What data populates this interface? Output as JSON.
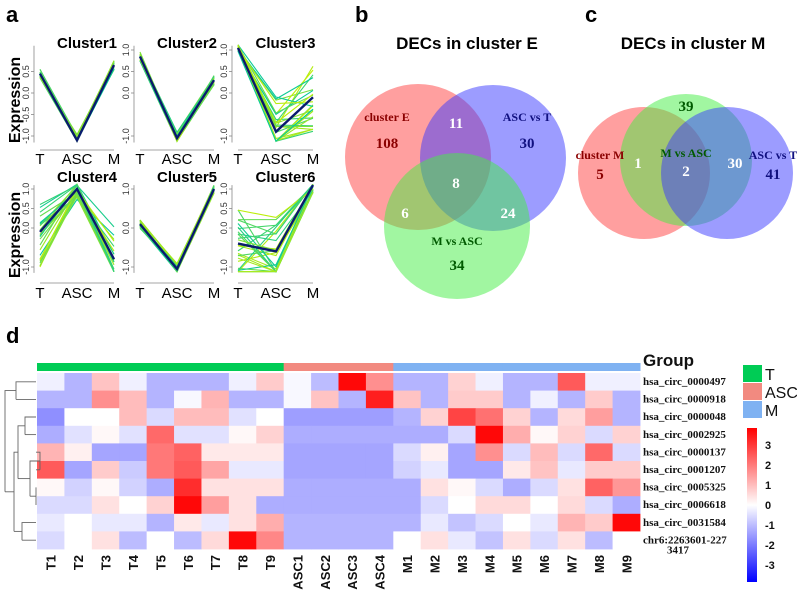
{
  "panel_labels": {
    "a": "a",
    "b": "b",
    "c": "c",
    "d": "d"
  },
  "chart_data": [
    {
      "type": "line",
      "panel": "a",
      "ylabel": "Expression",
      "categories": [
        "T",
        "ASC",
        "M"
      ],
      "ylim": [
        -1.1,
        1.1
      ],
      "clusters": [
        {
          "title": "Cluster1",
          "centroid": [
            0.45,
            -1.1,
            0.65
          ],
          "ytick_labels": [
            "-1.0",
            "-0.5",
            "0.0",
            "0.5"
          ],
          "yticks": [
            -1,
            -0.5,
            0,
            0.5
          ]
        },
        {
          "title": "Cluster2",
          "centroid": [
            0.85,
            -1.05,
            0.3
          ],
          "ytick_labels": [
            "-1.0",
            "0.0",
            "0.5",
            "1.0"
          ],
          "yticks": [
            -1,
            0,
            0.5,
            1
          ]
        },
        {
          "title": "Cluster3",
          "centroid": [
            1.05,
            -0.9,
            -0.1
          ],
          "ytick_labels": [
            "-1.0",
            "0.0",
            "0.5",
            "1.0"
          ],
          "yticks": [
            -1,
            0,
            0.5,
            1
          ]
        },
        {
          "title": "Cluster4",
          "centroid": [
            -0.1,
            1.0,
            -0.8
          ],
          "ytick_labels": [
            "-1.0",
            "0.0",
            "0.5",
            "1.0"
          ],
          "yticks": [
            -1,
            0,
            0.5,
            1
          ]
        },
        {
          "title": "Cluster5",
          "centroid": [
            0.1,
            -1.05,
            1.0
          ],
          "ytick_labels": [
            "-1.0",
            "0.0",
            "1.0"
          ],
          "yticks": [
            -1,
            0,
            1
          ]
        },
        {
          "title": "Cluster6",
          "centroid": [
            -0.4,
            -0.6,
            1.1
          ],
          "ytick_labels": [
            "-1.0",
            "0.0",
            "0.5",
            "1.0"
          ],
          "yticks": [
            -1,
            0,
            0.5,
            1
          ]
        }
      ],
      "colors": {
        "members_from": "#c8f000",
        "members_to": "#00c8a0",
        "centroid": "#0a1a6e"
      }
    },
    {
      "type": "venn",
      "panel": "b",
      "title": "DECs in cluster E",
      "sets": [
        {
          "name": "cluster E",
          "color": "#ff4040",
          "text_color": "#8b0000"
        },
        {
          "name": "ASC vs T",
          "color": "#3a3aff",
          "text_color": "#101080"
        },
        {
          "name": "M vs ASC",
          "color": "#44ee44",
          "text_color": "#005a00"
        }
      ],
      "regions": {
        "E_only": "108",
        "T_only": "30",
        "M_only": "34",
        "E_T": "11",
        "E_M": "6",
        "T_M": "24",
        "E_T_M": "8"
      }
    },
    {
      "type": "venn",
      "panel": "c",
      "title": "DECs in cluster M",
      "sets": [
        {
          "name": "cluster M",
          "color": "#ff4040",
          "text_color": "#8b0000"
        },
        {
          "name": "M vs ASC",
          "color": "#44ee44",
          "text_color": "#005a00"
        },
        {
          "name": "ASC vs T",
          "color": "#3a3aff",
          "text_color": "#101080"
        }
      ],
      "regions": {
        "M_only": "5",
        "MvA_only": "39",
        "T_only": "41",
        "M_MvA": "1",
        "MvA_T": "30",
        "center": "2"
      }
    },
    {
      "type": "heatmap",
      "panel": "d",
      "columns": [
        "T1",
        "T2",
        "T3",
        "T4",
        "T5",
        "T6",
        "T7",
        "T8",
        "T9",
        "ASC1",
        "ASC2",
        "ASC3",
        "ASC4",
        "M1",
        "M2",
        "M3",
        "M4",
        "M5",
        "M6",
        "M7",
        "M8",
        "M9"
      ],
      "column_groups": [
        "T",
        "T",
        "T",
        "T",
        "T",
        "T",
        "T",
        "T",
        "T",
        "ASC",
        "ASC",
        "ASC",
        "ASC",
        "M",
        "M",
        "M",
        "M",
        "M",
        "M",
        "M",
        "M",
        "M"
      ],
      "rows": [
        "hsa_circ_0000497",
        "hsa_circ_0000918",
        "hsa_circ_0000048",
        "hsa_circ_0002925",
        "hsa_circ_0000137",
        "hsa_circ_0001207",
        "hsa_circ_0005325",
        "hsa_circ_0006618",
        "hsa_circ_0031584",
        "chr6:2263601-2273417"
      ],
      "row_label_lines": [
        [
          "hsa_circ_0000497"
        ],
        [
          "hsa_circ_0000918"
        ],
        [
          "hsa_circ_0000048"
        ],
        [
          "hsa_circ_0002925"
        ],
        [
          "hsa_circ_0000137"
        ],
        [
          "hsa_circ_0001207"
        ],
        [
          "hsa_circ_0005325"
        ],
        [
          "hsa_circ_0006618"
        ],
        [
          "hsa_circ_0031584"
        ],
        [
          "chr6:2263601-227",
          "3417"
        ]
      ],
      "values": [
        [
          -0.2,
          -1.0,
          0.8,
          -0.2,
          -1.0,
          -1.0,
          -1.0,
          -0.2,
          0.7,
          -0.1,
          -0.9,
          3.3,
          1.5,
          -1.0,
          -1.0,
          0.6,
          -0.2,
          -1.0,
          -1.0,
          2.2,
          -0.2,
          -0.2
        ],
        [
          -1.0,
          -1.0,
          1.5,
          0.9,
          -1.0,
          -0.1,
          1.0,
          -1.0,
          -1.0,
          -0.1,
          0.8,
          -1.0,
          3.0,
          0.8,
          -1.0,
          0.7,
          0.7,
          -1.0,
          -0.2,
          -1.0,
          0.7,
          -1.0
        ],
        [
          -1.5,
          0.0,
          0.0,
          0.9,
          -0.5,
          0.9,
          0.9,
          -0.4,
          0.0,
          -1.3,
          -1.3,
          -1.3,
          -1.3,
          -1.0,
          0.6,
          2.5,
          1.9,
          0.6,
          -1.0,
          0.5,
          1.3,
          -1.0
        ],
        [
          -1.1,
          -0.4,
          0.1,
          -0.4,
          2.0,
          -0.4,
          -0.4,
          0.1,
          0.6,
          -1.1,
          -1.1,
          -1.1,
          -1.1,
          -1.1,
          -1.1,
          -0.5,
          3.3,
          1.1,
          0.1,
          0.6,
          -0.5,
          0.6
        ],
        [
          1.0,
          0.2,
          -1.2,
          -1.2,
          1.8,
          2.1,
          0.3,
          0.3,
          0.3,
          -1.2,
          -1.2,
          -1.2,
          -1.2,
          -0.5,
          0.2,
          -1.2,
          1.5,
          -0.5,
          0.9,
          -0.5,
          2.0,
          -0.5
        ],
        [
          2.2,
          -1.2,
          0.7,
          -0.7,
          1.8,
          2.2,
          1.2,
          -0.3,
          -0.3,
          -1.2,
          -1.2,
          -1.2,
          -1.2,
          -0.6,
          -0.3,
          -1.2,
          -1.2,
          0.3,
          0.8,
          -0.3,
          0.7,
          0.7
        ],
        [
          0.1,
          -0.6,
          0.1,
          -0.6,
          -1.1,
          2.8,
          0.4,
          0.4,
          0.4,
          -1.1,
          -1.1,
          -1.1,
          -1.1,
          -1.1,
          0.4,
          0.1,
          -0.5,
          -1.1,
          -0.5,
          0.4,
          2.1,
          1.4
        ],
        [
          -0.5,
          -0.5,
          0.4,
          0.0,
          0.6,
          3.3,
          1.3,
          0.4,
          -1.1,
          -1.1,
          -1.1,
          -1.1,
          -1.1,
          -1.1,
          -0.5,
          0.0,
          0.5,
          0.5,
          0.0,
          0.5,
          -0.5,
          -1.1
        ],
        [
          -0.3,
          0.0,
          -0.3,
          -0.3,
          -1.0,
          0.3,
          -0.3,
          0.4,
          1.1,
          -1.0,
          -1.0,
          -1.0,
          -1.0,
          -1.0,
          -0.3,
          -0.8,
          -0.5,
          0.0,
          -0.3,
          1.0,
          0.7,
          3.3
        ],
        [
          -0.5,
          0.0,
          0.4,
          -0.9,
          0.0,
          -0.9,
          0.5,
          3.3,
          1.6,
          -1.0,
          -1.0,
          -1.0,
          -1.0,
          0.0,
          0.4,
          -0.3,
          -0.8,
          0.4,
          -0.5,
          0.4,
          -0.9,
          0.0
        ]
      ],
      "color_scale": {
        "min": -3.4,
        "max": 3.4,
        "low": "#0000ff",
        "mid": "#ffffff",
        "high": "#ff0000",
        "tick_labels": [
          "3",
          "2",
          "1",
          "0",
          "-1",
          "-2",
          "-3"
        ],
        "ticks": [
          3,
          2,
          1,
          0,
          -1,
          -2,
          -3
        ]
      },
      "legend": {
        "title": "Group",
        "groups": [
          {
            "name": "T",
            "color": "#00cc55"
          },
          {
            "name": "ASC",
            "color": "#f28a80"
          },
          {
            "name": "M",
            "color": "#7fb2f2"
          }
        ]
      },
      "row_dendrogram": true
    }
  ]
}
